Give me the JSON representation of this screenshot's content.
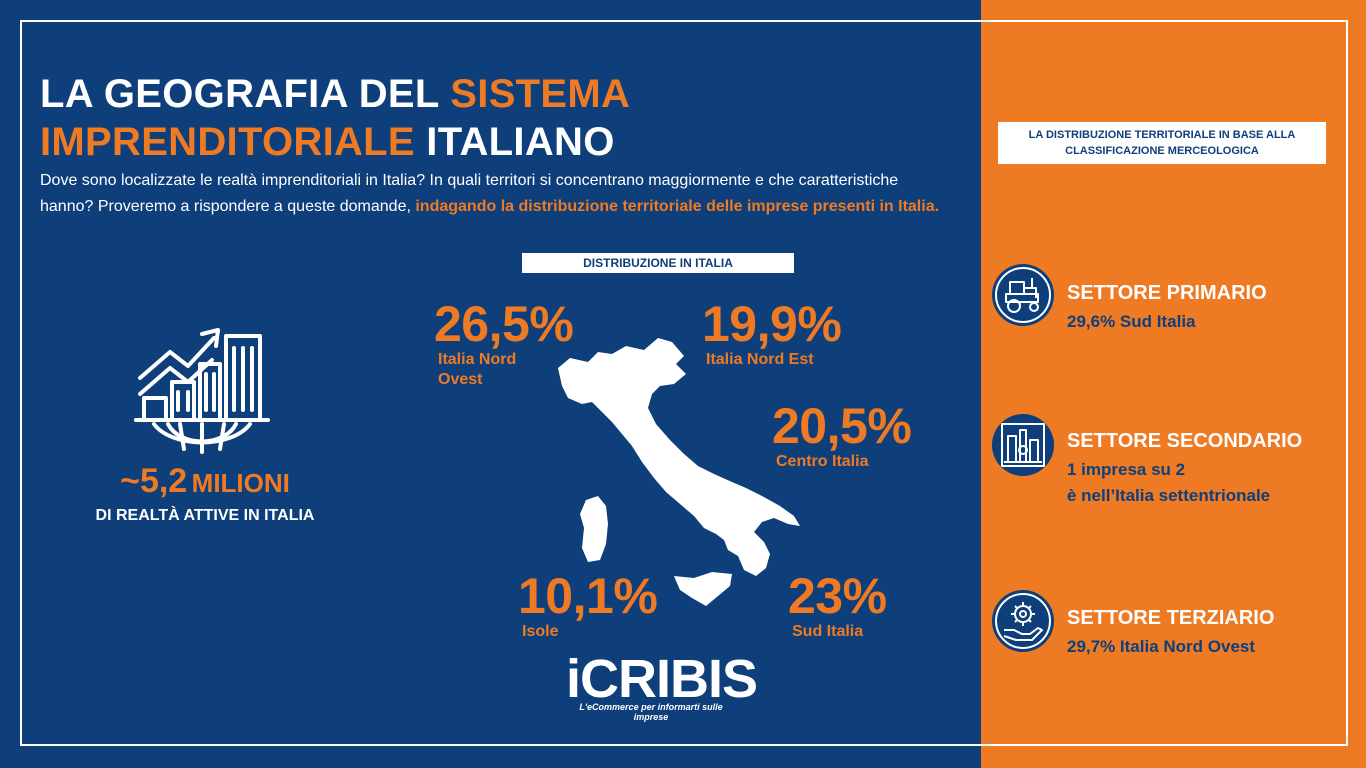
{
  "header": {
    "title_part1": "LA GEOGRAFIA DEL ",
    "title_part2": "SISTEMA IMPRENDITORIALE",
    "title_part3": " ITALIANO",
    "intro_text": "Dove sono localizzate le realtà imprenditoriali in Italia? In quali territori si concentrano maggiormente e che caratteristiche hanno?  Proveremo a rispondere a queste domande, ",
    "intro_highlight": "indagando la distribuzione territoriale delle imprese presenti in Italia."
  },
  "summary": {
    "number": "~5,2",
    "unit": "MILIONI",
    "subtitle": "DI REALTÀ ATTIVE IN ITALIA"
  },
  "distribution": {
    "label": "DISTRIBUZIONE IN ITALIA",
    "regions": [
      {
        "pct": "26,5%",
        "name": "Italia Nord Ovest"
      },
      {
        "pct": "19,9%",
        "name": "Italia Nord Est"
      },
      {
        "pct": "20,5%",
        "name": "Centro Italia"
      },
      {
        "pct": "10,1%",
        "name": "Isole"
      },
      {
        "pct": "23%",
        "name": "Sud Italia"
      }
    ]
  },
  "logo": {
    "name": "iCRIBIS",
    "tagline": "L'eCommerce per informarti sulle imprese"
  },
  "classification": {
    "label": "LA DISTRIBUZIONE TERRITORIALE IN BASE ALLA CLASSIFICAZIONE MERCEOLOGICA",
    "sectors": [
      {
        "title": "SETTORE PRIMARIO",
        "line1": "29,6% Sud Italia",
        "line2": "",
        "icon": "tractor-icon"
      },
      {
        "title": "SETTORE SECONDARIO",
        "line1": "1 impresa su 2",
        "line2": "è nell’Italia settentrionale",
        "icon": "factory-icon"
      },
      {
        "title": "SETTORE TERZIARIO",
        "line1": "29,7% Italia Nord Ovest",
        "line2": "",
        "icon": "hand-gear-icon"
      }
    ]
  },
  "colors": {
    "navy": "#0e3f7b",
    "orange": "#ef7a24",
    "white": "#ffffff"
  }
}
